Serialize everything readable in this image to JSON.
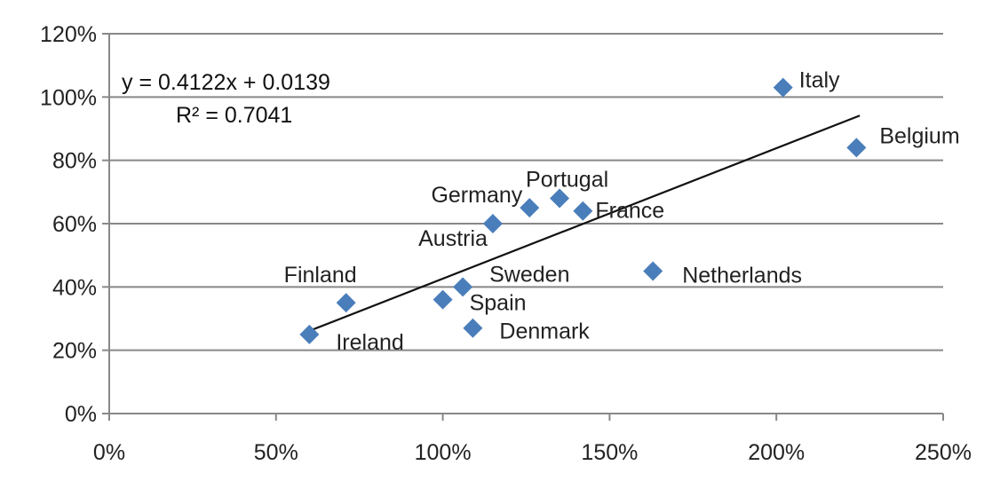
{
  "chart_data": {
    "type": "scatter",
    "xlim": [
      0,
      250
    ],
    "ylim": [
      0,
      120
    ],
    "x_ticks": [
      0,
      50,
      100,
      150,
      200,
      250
    ],
    "y_ticks": [
      0,
      20,
      40,
      60,
      80,
      100,
      120
    ],
    "x_tick_labels": [
      "0%",
      "50%",
      "100%",
      "150%",
      "200%",
      "250%"
    ],
    "y_tick_labels": [
      "0%",
      "20%",
      "40%",
      "60%",
      "80%",
      "100%",
      "120%"
    ],
    "grid": "horizontal",
    "marker_color": "#4a7ebb",
    "points": [
      {
        "label": "Ireland",
        "x": 60,
        "y": 25
      },
      {
        "label": "Finland",
        "x": 71,
        "y": 35
      },
      {
        "label": "Spain",
        "x": 100,
        "y": 36
      },
      {
        "label": "Sweden",
        "x": 106,
        "y": 40
      },
      {
        "label": "Denmark",
        "x": 109,
        "y": 27
      },
      {
        "label": "Austria",
        "x": 115,
        "y": 60
      },
      {
        "label": "Germany",
        "x": 126,
        "y": 65
      },
      {
        "label": "Portugal",
        "x": 135,
        "y": 68
      },
      {
        "label": "France",
        "x": 142,
        "y": 64
      },
      {
        "label": "Netherlands",
        "x": 163,
        "y": 45
      },
      {
        "label": "Italy",
        "x": 202,
        "y": 103
      },
      {
        "label": "Belgium",
        "x": 224,
        "y": 84
      }
    ],
    "trendline": {
      "equation": "y = 0.4122x + 0.0139",
      "r_squared": "R² = 0.7041",
      "slope": 0.4122,
      "intercept": 0.0139,
      "x_range": [
        60,
        225
      ]
    }
  }
}
